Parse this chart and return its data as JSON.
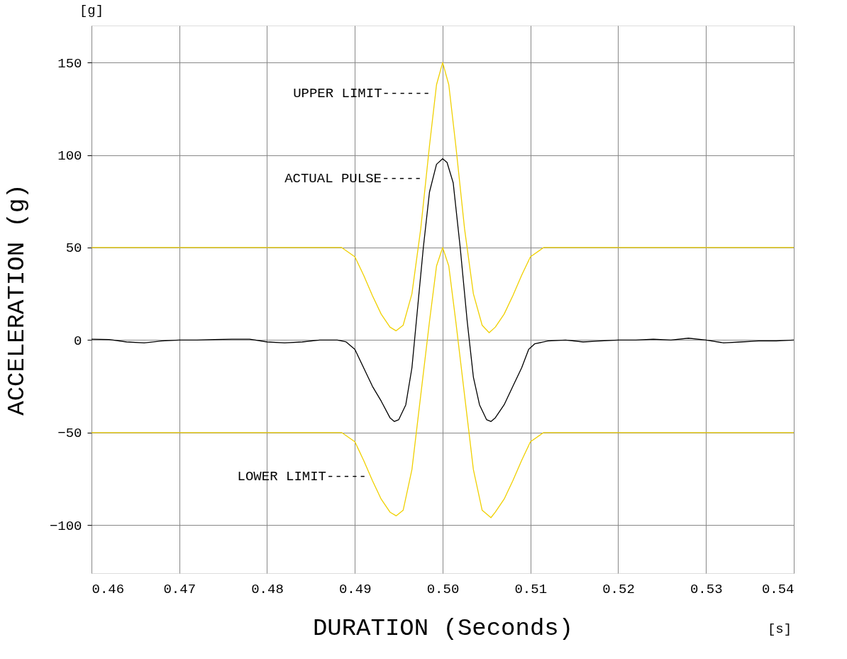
{
  "chart_data": {
    "type": "line",
    "xlabel": "DURATION (Seconds)",
    "ylabel": "ACCELERATION (g)",
    "xlim": [
      0.46,
      0.54
    ],
    "ylim": [
      -126,
      170
    ],
    "xticks": [
      0.46,
      0.47,
      0.48,
      0.49,
      {
        "value": 0.5,
        "label": "0.50"
      },
      0.51,
      0.52,
      0.53,
      0.54
    ],
    "yticks": [
      -100,
      -50,
      0,
      50,
      100,
      150
    ],
    "grid": true,
    "marker": "none",
    "line_style": "solid",
    "annotations": [
      "UPPER LIMIT------",
      "ACTUAL PULSE-----",
      "LOWER LIMIT-----",
      "[g]",
      "[s]"
    ],
    "series": [
      {
        "color": "#f0d000",
        "x": [
          0.46,
          0.4885,
          0.49,
          0.491,
          0.492,
          0.493,
          0.494,
          0.4947,
          0.4955,
          0.4965,
          0.4975,
          0.4985,
          0.4993,
          0.5,
          0.5007,
          0.5015,
          0.5025,
          0.5035,
          0.5045,
          0.5053,
          0.506,
          0.507,
          0.508,
          0.509,
          0.51,
          0.5115,
          0.54
        ],
        "values": [
          50,
          50,
          45,
          35,
          24,
          14,
          7,
          5,
          8,
          25,
          60,
          105,
          138,
          150,
          138,
          105,
          60,
          25,
          8,
          4,
          7,
          14,
          24,
          35,
          45,
          50,
          50
        ]
      },
      {
        "color": "#f0d000",
        "x": [
          0.46,
          0.4885,
          0.49,
          0.491,
          0.492,
          0.493,
          0.494,
          0.4947,
          0.4955,
          0.4965,
          0.4975,
          0.4985,
          0.4993,
          0.5,
          0.5007,
          0.5015,
          0.5025,
          0.5035,
          0.5045,
          0.5055,
          0.506,
          0.507,
          0.508,
          0.509,
          0.51,
          0.5115,
          0.54
        ],
        "values": [
          -50,
          -50,
          -55,
          -65,
          -76,
          -86,
          -93,
          -95,
          -92,
          -70,
          -30,
          10,
          40,
          50,
          40,
          10,
          -30,
          -70,
          -92,
          -96,
          -93,
          -86,
          -76,
          -65,
          -55,
          -50,
          -50
        ]
      },
      {
        "color": "#000000",
        "x": [
          0.46,
          0.462,
          0.464,
          0.466,
          0.468,
          0.47,
          0.472,
          0.474,
          0.476,
          0.478,
          0.48,
          0.482,
          0.484,
          0.486,
          0.488,
          0.489,
          0.49,
          0.491,
          0.492,
          0.493,
          0.494,
          0.4945,
          0.495,
          0.4958,
          0.4965,
          0.497,
          0.4978,
          0.4985,
          0.4993,
          0.5,
          0.5005,
          0.5012,
          0.502,
          0.5028,
          0.5035,
          0.5042,
          0.505,
          0.5055,
          0.506,
          0.507,
          0.508,
          0.509,
          0.5098,
          0.5105,
          0.512,
          0.514,
          0.516,
          0.518,
          0.52,
          0.522,
          0.524,
          0.526,
          0.528,
          0.53,
          0.532,
          0.534,
          0.536,
          0.538,
          0.54
        ],
        "values": [
          0.5,
          0.3,
          -1,
          -1.5,
          -0.5,
          0,
          0,
          0.3,
          0.5,
          0.5,
          -1,
          -1.5,
          -1,
          0,
          0,
          -1,
          -5,
          -15,
          -25,
          -33,
          -42,
          -44,
          -43,
          -35,
          -15,
          10,
          50,
          80,
          95,
          98,
          96,
          85,
          50,
          10,
          -20,
          -35,
          -43,
          -44,
          -42,
          -35,
          -25,
          -15,
          -5,
          -2,
          -0.5,
          0,
          -1,
          -0.5,
          0,
          0,
          0.5,
          0,
          1,
          0,
          -1.5,
          -1,
          -0.5,
          -0.5,
          0
        ]
      }
    ]
  }
}
